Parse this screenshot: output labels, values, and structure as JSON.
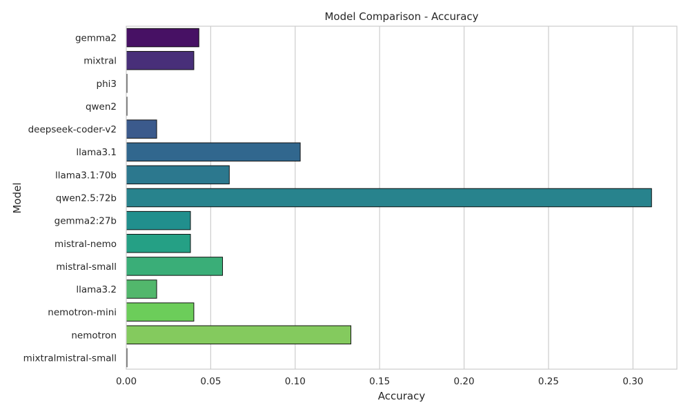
{
  "chart_data": {
    "type": "bar",
    "orientation": "horizontal",
    "title": "Model Comparison - Accuracy",
    "xlabel": "Accuracy",
    "ylabel": "Model",
    "xlim": [
      0,
      0.326
    ],
    "xticks": [
      0,
      0.05,
      0.1,
      0.15,
      0.2,
      0.25,
      0.3
    ],
    "xtick_labels": [
      "0.00",
      "0.05",
      "0.10",
      "0.15",
      "0.20",
      "0.25",
      "0.30"
    ],
    "grid": "vertical",
    "legend": "none",
    "categories": [
      "gemma2",
      "mixtral",
      "phi3",
      "qwen2",
      "deepseek-coder-v2",
      "llama3.1",
      "llama3.1:70b",
      "qwen2.5:72b",
      "gemma2:27b",
      "mistral-nemo",
      "mistral-small",
      "llama3.2",
      "nemotron-mini",
      "nemotron",
      "mixtralmistral-small"
    ],
    "values": [
      0.043,
      0.04,
      0.0,
      0.0,
      0.018,
      0.103,
      0.061,
      0.311,
      0.038,
      0.038,
      0.057,
      0.018,
      0.04,
      0.133,
      0.0
    ],
    "colors": [
      "#471164",
      "#482f79",
      "#46337e",
      "#3f4889",
      "#3b5a8c",
      "#31678e",
      "#2c788e",
      "#28838d",
      "#218f8d",
      "#25a085",
      "#3aae78",
      "#52b76c",
      "#6ccd5a",
      "#84ca5e",
      "#a8ca46"
    ]
  }
}
